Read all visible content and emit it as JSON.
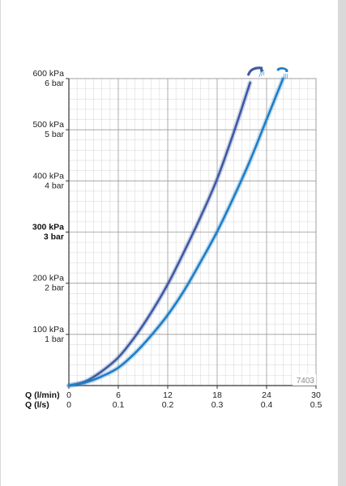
{
  "chart_data": {
    "type": "line",
    "y_ticks": [
      {
        "value": 100,
        "kpa": "100 kPa",
        "bar": "1 bar",
        "bold": false
      },
      {
        "value": 200,
        "kpa": "200 kPa",
        "bar": "2 bar",
        "bold": false
      },
      {
        "value": 300,
        "kpa": "300 kPa",
        "bar": "3 bar",
        "bold": true
      },
      {
        "value": 400,
        "kpa": "400 kPa",
        "bar": "4 bar",
        "bold": false
      },
      {
        "value": 500,
        "kpa": "500 kPa",
        "bar": "5 bar",
        "bold": false
      },
      {
        "value": 600,
        "kpa": "600 kPa",
        "bar": "6 bar",
        "bold": false
      }
    ],
    "x_ticks_lmin": [
      "0",
      "6",
      "12",
      "18",
      "24",
      "30"
    ],
    "x_ticks_ls": [
      "0",
      "0.1",
      "0.2",
      "0.3",
      "0.4",
      "0.5"
    ],
    "x_axis_label_lmin": "Q (l/min)",
    "x_axis_label_ls": "Q (l/s)",
    "xlim": [
      0,
      30
    ],
    "ylim": [
      0,
      600
    ],
    "grid": true,
    "code": "7403",
    "series": [
      {
        "icon": "handshower-icon",
        "color": "#3f5aa3",
        "x": [
          0,
          2,
          4,
          6,
          8,
          10,
          12,
          14,
          16,
          18,
          20,
          22
        ],
        "y": [
          0,
          8,
          28,
          55,
          95,
          143,
          198,
          262,
          330,
          404,
          494,
          592
        ]
      },
      {
        "icon": "bath-spout-icon",
        "color": "#1f7ec7",
        "x": [
          0,
          2,
          4,
          6,
          8,
          10,
          12,
          14,
          16,
          18,
          20,
          22,
          24,
          26
        ],
        "y": [
          0,
          6,
          18,
          35,
          63,
          98,
          138,
          186,
          242,
          301,
          368,
          440,
          520,
          600
        ]
      }
    ]
  }
}
